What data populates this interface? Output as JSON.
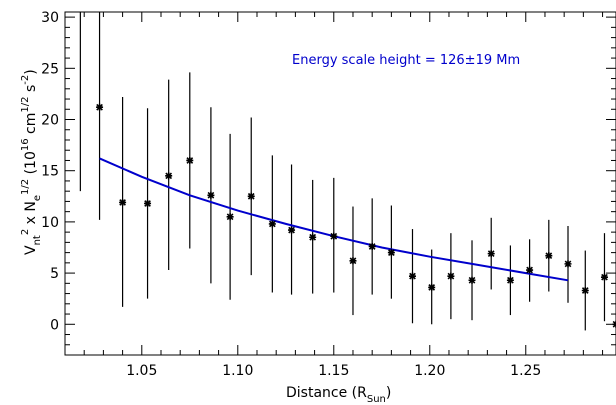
{
  "chart_data": {
    "type": "scatter",
    "xlabel": {
      "main": "Distance (R",
      "sub": "Sun",
      "close": ")"
    },
    "ylabel": {
      "v": "V",
      "v_sub": "nt",
      "v_sup": "2",
      "times": " x N",
      "n_sub": "e",
      "n_sup": "1/2",
      "units_pre": " (10",
      "units_exp": "16",
      "units_mid": " cm",
      "units_exp2": "1/2",
      "units_mid2": " s",
      "units_exp3": "-2",
      "units_post": ")"
    },
    "xlim": [
      1.01,
      1.297
    ],
    "ylim": [
      -3,
      30.5
    ],
    "xticks": [
      1.05,
      1.1,
      1.15,
      1.2,
      1.25
    ],
    "xtick_labels": [
      "1.05",
      "1.10",
      "1.15",
      "1.20",
      "1.25"
    ],
    "yticks": [
      0,
      5,
      10,
      15,
      20,
      25,
      30
    ],
    "ytick_labels": [
      "0",
      "5",
      "10",
      "15",
      "20",
      "25",
      "30"
    ],
    "grid": false,
    "annotation": {
      "text": "Energy scale height = 126±19 Mm",
      "color": "#0000cc"
    },
    "series": [
      {
        "kind": "points_with_errorbars",
        "color": "#000000",
        "points": [
          {
            "x": 1.018,
            "y": null,
            "lo": 13.0,
            "hi": 30.5
          },
          {
            "x": 1.028,
            "y": 21.2,
            "lo": 10.2,
            "hi": 30.5
          },
          {
            "x": 1.04,
            "y": 11.9,
            "lo": 1.7,
            "hi": 22.2
          },
          {
            "x": 1.053,
            "y": 11.8,
            "lo": 2.5,
            "hi": 21.1
          },
          {
            "x": 1.064,
            "y": 14.5,
            "lo": 5.3,
            "hi": 23.9
          },
          {
            "x": 1.075,
            "y": 16.0,
            "lo": 7.4,
            "hi": 24.6
          },
          {
            "x": 1.086,
            "y": 12.6,
            "lo": 4.0,
            "hi": 21.2
          },
          {
            "x": 1.096,
            "y": 10.5,
            "lo": 2.4,
            "hi": 18.6
          },
          {
            "x": 1.107,
            "y": 12.5,
            "lo": 4.8,
            "hi": 20.2
          },
          {
            "x": 1.118,
            "y": 9.8,
            "lo": 3.1,
            "hi": 16.5
          },
          {
            "x": 1.128,
            "y": 9.2,
            "lo": 2.9,
            "hi": 15.6
          },
          {
            "x": 1.139,
            "y": 8.5,
            "lo": 3.0,
            "hi": 14.1
          },
          {
            "x": 1.15,
            "y": 8.6,
            "lo": 3.1,
            "hi": 14.3
          },
          {
            "x": 1.16,
            "y": 6.2,
            "lo": 0.9,
            "hi": 11.5
          },
          {
            "x": 1.17,
            "y": 7.6,
            "lo": 2.9,
            "hi": 12.3
          },
          {
            "x": 1.18,
            "y": 7.0,
            "lo": 2.5,
            "hi": 11.6
          },
          {
            "x": 1.191,
            "y": 4.7,
            "lo": 0.1,
            "hi": 9.3
          },
          {
            "x": 1.201,
            "y": 3.6,
            "lo": 0.0,
            "hi": 7.3
          },
          {
            "x": 1.211,
            "y": 4.7,
            "lo": 0.5,
            "hi": 8.9
          },
          {
            "x": 1.222,
            "y": 4.3,
            "lo": 0.4,
            "hi": 8.2
          },
          {
            "x": 1.232,
            "y": 6.9,
            "lo": 3.4,
            "hi": 10.4
          },
          {
            "x": 1.242,
            "y": 4.3,
            "lo": 0.9,
            "hi": 7.7
          },
          {
            "x": 1.252,
            "y": 5.3,
            "lo": 2.2,
            "hi": 8.3
          },
          {
            "x": 1.262,
            "y": 6.7,
            "lo": 3.2,
            "hi": 10.2
          },
          {
            "x": 1.272,
            "y": 5.9,
            "lo": 2.1,
            "hi": 9.6
          },
          {
            "x": 1.281,
            "y": 3.3,
            "lo": -0.6,
            "hi": 7.2
          },
          {
            "x": 1.291,
            "y": 4.6,
            "lo": 0.3,
            "hi": 8.9
          },
          {
            "x": 1.297,
            "y": 0.0,
            "lo": 0.0,
            "hi": 0.0
          }
        ]
      },
      {
        "kind": "fit_curve",
        "color": "#0000cc",
        "x": [
          1.028,
          1.05,
          1.075,
          1.1,
          1.125,
          1.15,
          1.175,
          1.2,
          1.225,
          1.25,
          1.272
        ],
        "y": [
          16.2,
          14.4,
          12.6,
          11.1,
          9.8,
          8.6,
          7.5,
          6.6,
          5.8,
          5.0,
          4.3
        ]
      }
    ]
  }
}
